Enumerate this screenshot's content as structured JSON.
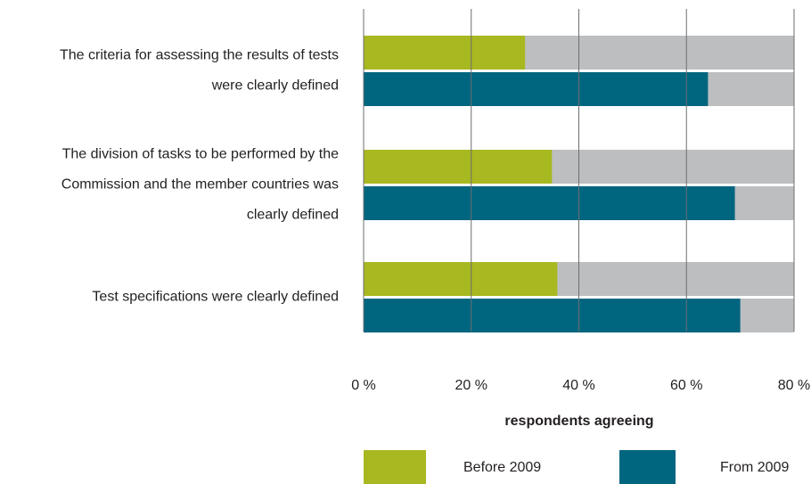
{
  "chart_data": {
    "type": "barh",
    "categories": [
      [
        "The criteria for assessing the results of tests",
        "were clearly defined"
      ],
      [
        "The division of tasks to be performed by the",
        "Commission and the member countries was",
        "clearly defined"
      ],
      [
        "Test specifications were clearly defined"
      ]
    ],
    "series": [
      {
        "name": "Before 2009",
        "color": "#a8b820",
        "values": [
          30,
          35,
          36
        ]
      },
      {
        "name": "From 2009",
        "color": "#00657f",
        "values": [
          64,
          69,
          70
        ]
      }
    ],
    "track_color": "#bcbec0",
    "xlim": [
      0,
      80
    ],
    "xticks": [
      {
        "value": 0,
        "label": "0 %"
      },
      {
        "value": 20,
        "label": "20 %"
      },
      {
        "value": 40,
        "label": "40 %"
      },
      {
        "value": 60,
        "label": "60 %"
      },
      {
        "value": 80,
        "label": "80 %"
      }
    ],
    "xlabel": "respondents agreeing",
    "grid": true
  }
}
